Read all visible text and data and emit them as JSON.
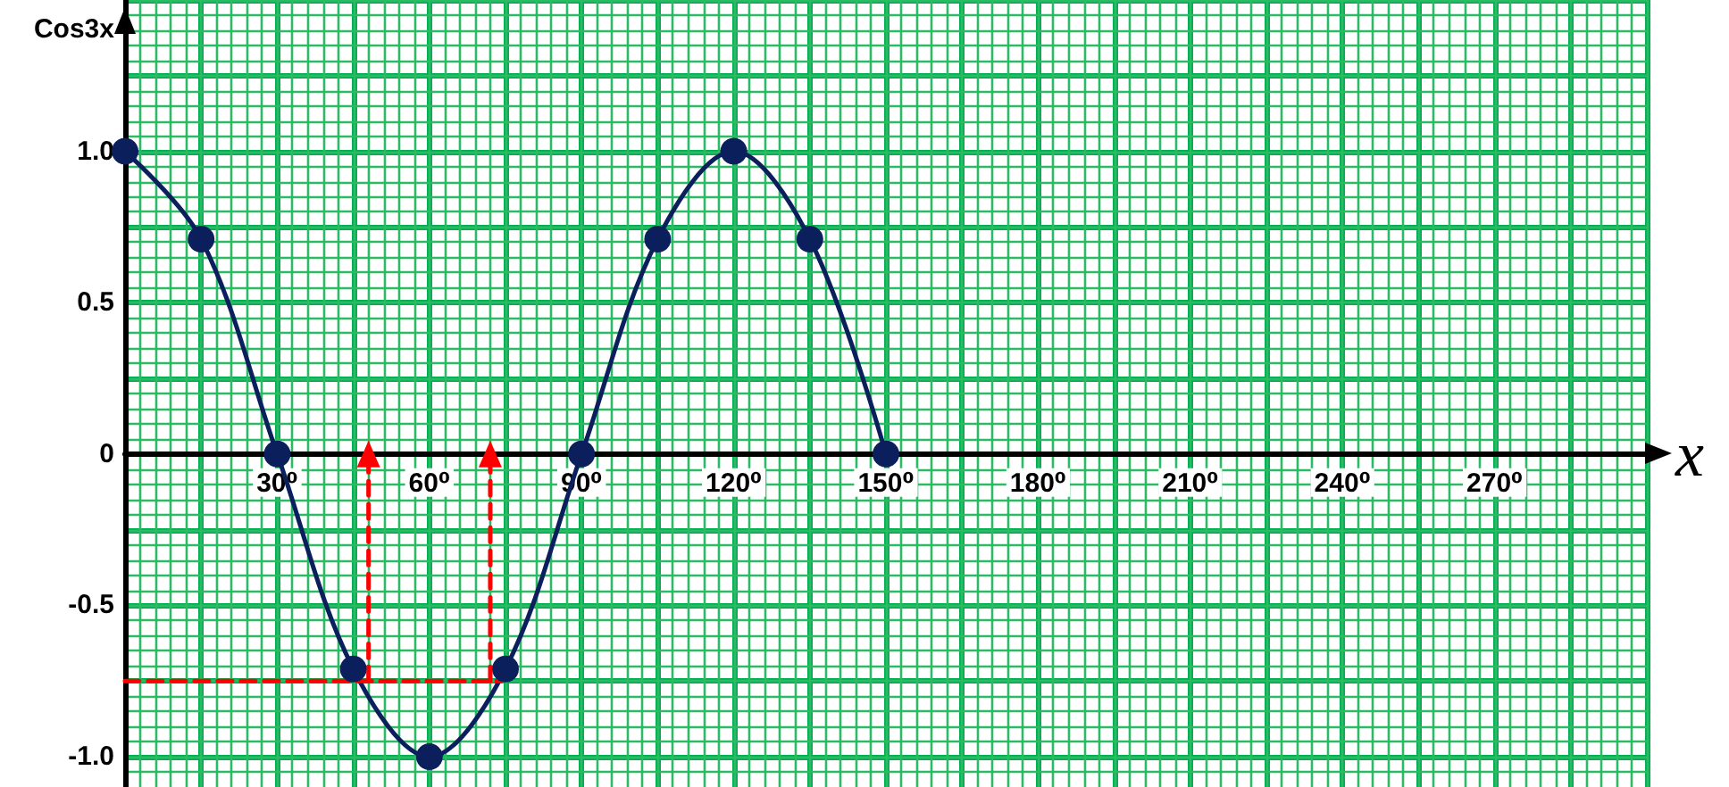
{
  "chart_data": {
    "type": "line",
    "xlabel": "x",
    "ylabel": "Cos3x",
    "xlim": [
      0,
      300
    ],
    "xticks": [
      {
        "value": 0,
        "label": null
      },
      {
        "value": 3,
        "label": null
      },
      {
        "value": 6,
        "label": null
      },
      {
        "value": 9,
        "label": null
      },
      {
        "value": 12,
        "label": null
      },
      {
        "value": 15,
        "label": null
      },
      {
        "value": 18,
        "label": null
      },
      {
        "value": 21,
        "label": null
      },
      {
        "value": 24,
        "label": null
      },
      {
        "value": 27,
        "label": null
      },
      {
        "value": 30,
        "label": "30⁰"
      },
      {
        "value": 33,
        "label": null
      },
      {
        "value": 36,
        "label": null
      },
      {
        "value": 39,
        "label": null
      },
      {
        "value": 42,
        "label": null
      },
      {
        "value": 45,
        "label": null
      },
      {
        "value": 48,
        "label": null
      },
      {
        "value": 51,
        "label": null
      },
      {
        "value": 54,
        "label": null
      },
      {
        "value": 57,
        "label": null
      },
      {
        "value": 60,
        "label": "60⁰"
      },
      {
        "value": 63,
        "label": null
      },
      {
        "value": 66,
        "label": null
      },
      {
        "value": 69,
        "label": null
      },
      {
        "value": 72,
        "label": null
      },
      {
        "value": 75,
        "label": null
      },
      {
        "value": 78,
        "label": null
      },
      {
        "value": 81,
        "label": null
      },
      {
        "value": 84,
        "label": null
      },
      {
        "value": 87,
        "label": null
      },
      {
        "value": 90,
        "label": "90⁰"
      },
      {
        "value": 93,
        "label": null
      },
      {
        "value": 96,
        "label": null
      },
      {
        "value": 99,
        "label": null
      },
      {
        "value": 102,
        "label": null
      },
      {
        "value": 105,
        "label": null
      },
      {
        "value": 108,
        "label": null
      },
      {
        "value": 111,
        "label": null
      },
      {
        "value": 114,
        "label": null
      },
      {
        "value": 117,
        "label": null
      },
      {
        "value": 120,
        "label": "120⁰"
      },
      {
        "value": 123,
        "label": null
      },
      {
        "value": 126,
        "label": null
      },
      {
        "value": 129,
        "label": null
      },
      {
        "value": 132,
        "label": null
      },
      {
        "value": 135,
        "label": null
      },
      {
        "value": 138,
        "label": null
      },
      {
        "value": 141,
        "label": null
      },
      {
        "value": 144,
        "label": null
      },
      {
        "value": 147,
        "label": null
      },
      {
        "value": 150,
        "label": "150⁰"
      },
      {
        "value": 153,
        "label": null
      },
      {
        "value": 156,
        "label": null
      },
      {
        "value": 159,
        "label": null
      },
      {
        "value": 162,
        "label": null
      },
      {
        "value": 165,
        "label": null
      },
      {
        "value": 168,
        "label": null
      },
      {
        "value": 171,
        "label": null
      },
      {
        "value": 174,
        "label": null
      },
      {
        "value": 177,
        "label": null
      },
      {
        "value": 180,
        "label": "180⁰"
      },
      {
        "value": 183,
        "label": null
      },
      {
        "value": 186,
        "label": null
      },
      {
        "value": 189,
        "label": null
      },
      {
        "value": 192,
        "label": null
      },
      {
        "value": 195,
        "label": null
      },
      {
        "value": 198,
        "label": null
      },
      {
        "value": 201,
        "label": null
      },
      {
        "value": 204,
        "label": null
      },
      {
        "value": 207,
        "label": null
      },
      {
        "value": 210,
        "label": "210⁰"
      },
      {
        "value": 213,
        "label": null
      },
      {
        "value": 216,
        "label": null
      },
      {
        "value": 219,
        "label": null
      },
      {
        "value": 222,
        "label": null
      },
      {
        "value": 225,
        "label": null
      },
      {
        "value": 228,
        "label": null
      },
      {
        "value": 231,
        "label": null
      },
      {
        "value": 234,
        "label": null
      },
      {
        "value": 237,
        "label": null
      },
      {
        "value": 240,
        "label": "240⁰"
      },
      {
        "value": 243,
        "label": null
      },
      {
        "value": 246,
        "label": null
      },
      {
        "value": 249,
        "label": null
      },
      {
        "value": 252,
        "label": null
      },
      {
        "value": 255,
        "label": null
      },
      {
        "value": 258,
        "label": null
      },
      {
        "value": 261,
        "label": null
      },
      {
        "value": 264,
        "label": null
      },
      {
        "value": 267,
        "label": null
      },
      {
        "value": 270,
        "label": "270⁰"
      },
      {
        "value": 273,
        "label": null
      },
      {
        "value": 276,
        "label": null
      },
      {
        "value": 279,
        "label": null
      },
      {
        "value": 282,
        "label": null
      },
      {
        "value": 285,
        "label": null
      },
      {
        "value": 288,
        "label": null
      },
      {
        "value": 291,
        "label": null
      },
      {
        "value": 294,
        "label": null
      },
      {
        "value": 297,
        "label": null
      },
      {
        "value": 300,
        "label": null
      }
    ],
    "ylim": [
      -1.1,
      1.5
    ],
    "yticks": [
      {
        "value": -1.05,
        "label": null
      },
      {
        "value": -1,
        "label": "-1.0"
      },
      {
        "value": -0.95,
        "label": null
      },
      {
        "value": -0.9,
        "label": null
      },
      {
        "value": -0.85,
        "label": null
      },
      {
        "value": -0.8,
        "label": null
      },
      {
        "value": -0.75,
        "label": null
      },
      {
        "value": -0.7,
        "label": null
      },
      {
        "value": -0.65,
        "label": null
      },
      {
        "value": -0.6,
        "label": null
      },
      {
        "value": -0.55,
        "label": null
      },
      {
        "value": -0.5,
        "label": "-0.5"
      },
      {
        "value": -0.45,
        "label": null
      },
      {
        "value": -0.4,
        "label": null
      },
      {
        "value": -0.35,
        "label": null
      },
      {
        "value": -0.3,
        "label": null
      },
      {
        "value": -0.25,
        "label": null
      },
      {
        "value": -0.2,
        "label": null
      },
      {
        "value": -0.15,
        "label": null
      },
      {
        "value": -0.1,
        "label": null
      },
      {
        "value": -0.05,
        "label": null
      },
      {
        "value": 0,
        "label": "0"
      },
      {
        "value": 0.05,
        "label": null
      },
      {
        "value": 0.1,
        "label": null
      },
      {
        "value": 0.15,
        "label": null
      },
      {
        "value": 0.2,
        "label": null
      },
      {
        "value": 0.25,
        "label": null
      },
      {
        "value": 0.3,
        "label": null
      },
      {
        "value": 0.35,
        "label": null
      },
      {
        "value": 0.4,
        "label": null
      },
      {
        "value": 0.45,
        "label": null
      },
      {
        "value": 0.5,
        "label": "0.5"
      },
      {
        "value": 0.55,
        "label": null
      },
      {
        "value": 0.6,
        "label": null
      },
      {
        "value": 0.65,
        "label": null
      },
      {
        "value": 0.7,
        "label": null
      },
      {
        "value": 0.75,
        "label": null
      },
      {
        "value": 0.8,
        "label": null
      },
      {
        "value": 0.85,
        "label": null
      },
      {
        "value": 0.9,
        "label": null
      },
      {
        "value": 0.95,
        "label": null
      },
      {
        "value": 1,
        "label": "1.0"
      },
      {
        "value": 1.05,
        "label": null
      },
      {
        "value": 1.1,
        "label": null
      },
      {
        "value": 1.15,
        "label": null
      },
      {
        "value": 1.2,
        "label": null
      },
      {
        "value": 1.25,
        "label": null
      },
      {
        "value": 1.3,
        "label": null
      },
      {
        "value": 1.35,
        "label": null
      },
      {
        "value": 1.4,
        "label": null
      },
      {
        "value": 1.45,
        "label": null
      },
      {
        "value": 1.5,
        "label": null
      }
    ],
    "grid": true,
    "marker": "circle",
    "series": [
      {
        "color": "#0b1f5c",
        "x": [
          0,
          15,
          30,
          45,
          60,
          75,
          90,
          105,
          120,
          135,
          150
        ],
        "values": [
          1,
          0.71,
          0,
          -0.71,
          -1,
          -0.71,
          0,
          0.71,
          1,
          0.71,
          0
        ]
      },
      {
        "color": "#ff0000",
        "x": [
          0,
          74
        ],
        "values": [
          -0.75,
          -0.75
        ],
        "line_style": "dashed",
        "marker": "none"
      },
      {
        "color": "#ff0000",
        "x": [
          48,
          48
        ],
        "values": [
          -0.75,
          0
        ],
        "line_style": "dashed",
        "marker": "triangle"
      },
      {
        "color": "#ff0000",
        "x": [
          72,
          72
        ],
        "values": [
          -0.75,
          0
        ],
        "line_style": "dashed",
        "marker": "triangle"
      }
    ]
  }
}
